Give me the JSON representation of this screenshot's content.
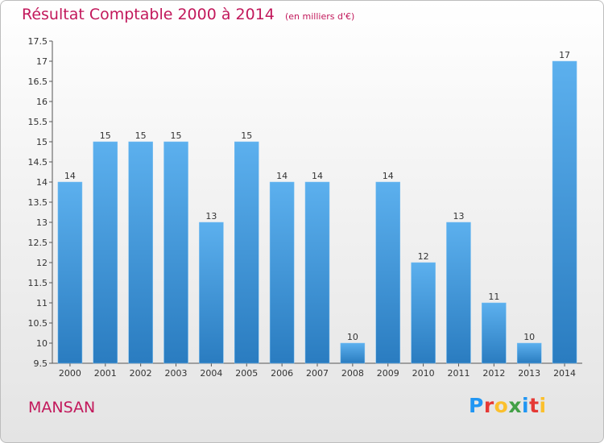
{
  "chart_data": {
    "type": "bar",
    "title": "Résultat Comptable 2000 à 2014",
    "subtitle": "(en milliers d'€)",
    "categories": [
      "2000",
      "2001",
      "2002",
      "2003",
      "2004",
      "2005",
      "2006",
      "2007",
      "2008",
      "2009",
      "2010",
      "2011",
      "2012",
      "2013",
      "2014"
    ],
    "values": [
      14,
      15,
      15,
      15,
      13,
      15,
      14,
      14,
      10,
      14,
      12,
      13,
      11,
      10,
      17
    ],
    "y_ticks": [
      "9.5",
      "10",
      "10.5",
      "11",
      "11.5",
      "12",
      "12.5",
      "13",
      "13.5",
      "14",
      "14.5",
      "15",
      "15.5",
      "16",
      "16.5",
      "17",
      "17.5"
    ],
    "ylim": [
      9.5,
      17.5
    ],
    "xlabel": "",
    "ylabel": "",
    "grid": false,
    "bar_color": "#3a8fd6"
  },
  "footer": {
    "city": "MANSAN",
    "logo": [
      "P",
      "r",
      "o",
      "x",
      "i",
      "t",
      "i"
    ],
    "logo_colors": [
      "#2196f3",
      "#e53935",
      "#fbc02d",
      "#43a047",
      "#2196f3",
      "#e53935",
      "#fbc02d"
    ]
  }
}
